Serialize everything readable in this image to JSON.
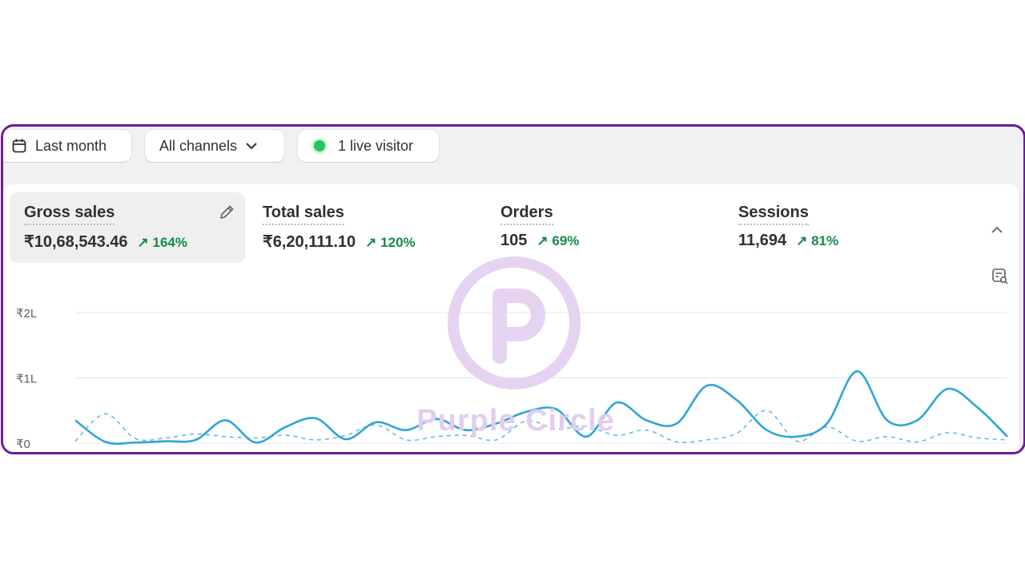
{
  "filters": {
    "date_range": "Last month",
    "channels": "All channels",
    "live_visitors": "1 live visitor"
  },
  "metrics": [
    {
      "title": "Gross sales",
      "value": "₹10,68,543.46",
      "change": "164%"
    },
    {
      "title": "Total sales",
      "value": "₹6,20,111.10",
      "change": "120%"
    },
    {
      "title": "Orders",
      "value": "105",
      "change": "69%"
    },
    {
      "title": "Sessions",
      "value": "11,694",
      "change": "81%"
    }
  ],
  "watermark": {
    "text": "Purple Circle"
  },
  "colors": {
    "accent": "#2ea6d8",
    "positive": "#138a4b",
    "frame": "#6a1b9a",
    "live_dot": "#22c55e"
  },
  "chart_data": {
    "type": "line",
    "y_ticks": [
      "₹2L",
      "₹1L",
      "₹0"
    ],
    "ylim": [
      0,
      200000
    ],
    "grid": true,
    "series": [
      {
        "style": "solid",
        "values": [
          35000,
          2000,
          1000,
          3000,
          5000,
          35000,
          1000,
          25000,
          38000,
          6000,
          32000,
          20000,
          37000,
          20000,
          30000,
          48000,
          52000,
          10000,
          62000,
          35000,
          30000,
          88000,
          66000,
          20000,
          10000,
          30000,
          110000,
          35000,
          35000,
          83000,
          55000,
          10000
        ]
      },
      {
        "style": "dashed",
        "values": [
          3000,
          45000,
          7000,
          8000,
          14000,
          10000,
          8000,
          12000,
          5000,
          12000,
          28000,
          5000,
          10000,
          12000,
          5000,
          34000,
          22000,
          26000,
          12000,
          20000,
          2000,
          5000,
          15000,
          50000,
          3000,
          25000,
          3000,
          10000,
          2000,
          16000,
          8000,
          5000
        ]
      }
    ]
  }
}
